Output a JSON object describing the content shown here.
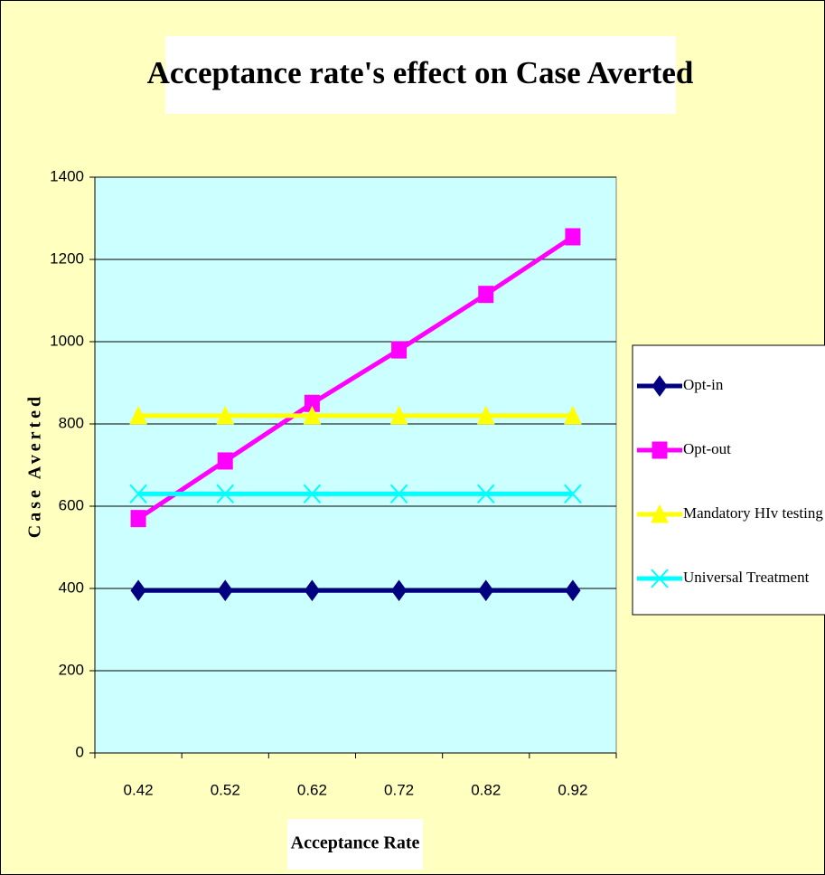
{
  "chart_data": {
    "type": "line",
    "title": "Acceptance rate's effect on Case Averted",
    "x_label": "Acceptance Rate",
    "y_label": "Case Averted",
    "categories": [
      "0.42",
      "0.52",
      "0.62",
      "0.72",
      "0.82",
      "0.92"
    ],
    "series": [
      {
        "name": "Opt-in",
        "color": "#000080",
        "marker": "diamond",
        "values": [
          395,
          395,
          395,
          395,
          395,
          395
        ]
      },
      {
        "name": "Opt-out",
        "color": "#ff00ff",
        "marker": "square",
        "values": [
          570,
          710,
          850,
          980,
          1115,
          1255
        ]
      },
      {
        "name": "Mandatory HIv testing",
        "color": "#ffff00",
        "marker": "triangle",
        "values": [
          820,
          820,
          820,
          820,
          820,
          820
        ]
      },
      {
        "name": "Universal Treatment",
        "color": "#00ffff",
        "marker": "x",
        "values": [
          630,
          630,
          630,
          630,
          630,
          630
        ]
      }
    ],
    "ylim": [
      0,
      1400
    ],
    "yticks": [
      0,
      200,
      400,
      600,
      800,
      1000,
      1200,
      1400
    ],
    "grid": true,
    "legend": "right"
  }
}
